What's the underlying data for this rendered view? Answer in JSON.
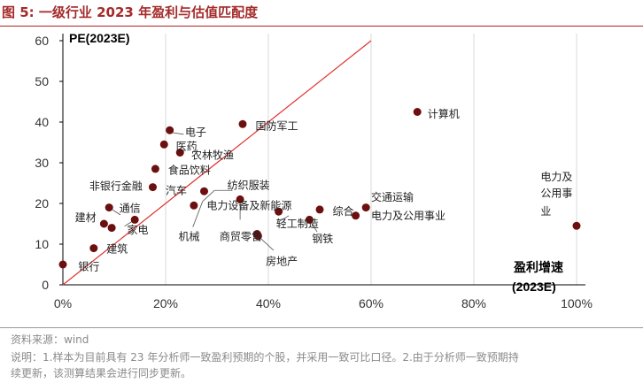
{
  "figure": {
    "title": "图 5:  一级行业 2023 年盈利与估值匹配度",
    "source": "资料来源：wind",
    "note_line1": "说明：1.样本为目前具有 23 年分析师一致盈利预期的个股，并采用一致可比口径。2.由于分析师一致预期持",
    "note_line2": "续更新，该测算结果会进行同步更新。"
  },
  "chart_data": {
    "type": "scatter",
    "y_axis_title": "PE(2023E)",
    "x_axis_title_line1": "盈利增速",
    "x_axis_title_line2": "(2023E)",
    "xlim": [
      0,
      1
    ],
    "ylim": [
      0,
      60
    ],
    "x_ticks": [
      0,
      0.2,
      0.4,
      0.6,
      0.8,
      1.0
    ],
    "x_tick_labels": [
      "0%",
      "20%",
      "40%",
      "60%",
      "80%",
      "100%"
    ],
    "y_ticks": [
      0,
      10,
      20,
      30,
      40,
      50,
      60
    ],
    "y_tick_labels": [
      "0",
      "10",
      "20",
      "30",
      "40",
      "50",
      "60"
    ],
    "grid": "vertical",
    "diagonal_line": {
      "x": [
        0,
        0.6
      ],
      "y": [
        0,
        60
      ]
    },
    "point_color": "#6b0f0f",
    "line_color": "#e03030",
    "points": [
      {
        "name": "银行",
        "x": 0.0,
        "y": 5.0
      },
      {
        "name": "建筑",
        "x": 0.06,
        "y": 9.0
      },
      {
        "name": "建材",
        "x": 0.08,
        "y": 15.0
      },
      {
        "name": "通信",
        "x": 0.09,
        "y": 19.0
      },
      {
        "name": "家电",
        "x": 0.095,
        "y": 14.0
      },
      {
        "name": "非银行金融",
        "x": 0.14,
        "y": 16.0
      },
      {
        "name": "汽车",
        "x": 0.175,
        "y": 24.0
      },
      {
        "name": "食品饮料",
        "x": 0.18,
        "y": 28.5
      },
      {
        "name": "医药",
        "x": 0.197,
        "y": 34.5
      },
      {
        "name": "电子",
        "x": 0.208,
        "y": 38.0
      },
      {
        "name": "农林牧渔",
        "x": 0.228,
        "y": 32.5
      },
      {
        "name": "机械",
        "x": 0.255,
        "y": 19.5
      },
      {
        "name": "纺织服装",
        "x": 0.275,
        "y": 23.0
      },
      {
        "name": "国防军工",
        "x": 0.35,
        "y": 39.5
      },
      {
        "name": "电力设备及新能源",
        "x": 0.345,
        "y": 21.0
      },
      {
        "name": "商贸零售",
        "x": 0.378,
        "y": 12.5
      },
      {
        "name": "房地产",
        "x": 0.38,
        "y": 12.0
      },
      {
        "name": "轻工制造",
        "x": 0.42,
        "y": 18.0
      },
      {
        "name": "钢铁",
        "x": 0.48,
        "y": 16.0
      },
      {
        "name": "综合",
        "x": 0.5,
        "y": 18.5
      },
      {
        "name": "电力及公用事业",
        "x": 0.57,
        "y": 17.0
      },
      {
        "name": "交通运输",
        "x": 0.59,
        "y": 19.0
      },
      {
        "name": "计算机",
        "x": 0.69,
        "y": 42.5
      },
      {
        "name": "电力及公用事业",
        "x": 1.0,
        "y": 14.5
      }
    ],
    "labels": [
      {
        "text": "银行",
        "x": 0.03,
        "y": 4.5,
        "anchor": "start"
      },
      {
        "text": "建筑",
        "x": 0.085,
        "y": 8.8,
        "anchor": "start"
      },
      {
        "text": "建材",
        "x": 0.065,
        "y": 16.5,
        "anchor": "end"
      },
      {
        "text": "家电",
        "x": 0.125,
        "y": 13.5,
        "anchor": "start"
      },
      {
        "text": "通信",
        "x": 0.11,
        "y": 18.8,
        "anchor": "start"
      },
      {
        "text": "非银行金融",
        "x": 0.155,
        "y": 24.2,
        "anchor": "end"
      },
      {
        "text": "汽车",
        "x": 0.2,
        "y": 23.2,
        "anchor": "start"
      },
      {
        "text": "食品饮料",
        "x": 0.205,
        "y": 28.2,
        "anchor": "start"
      },
      {
        "text": "医药",
        "x": 0.22,
        "y": 34.0,
        "anchor": "start"
      },
      {
        "text": "农林牧渔",
        "x": 0.25,
        "y": 31.8,
        "anchor": "start"
      },
      {
        "text": "电子",
        "x": 0.238,
        "y": 37.5,
        "anchor": "start"
      },
      {
        "text": "国防军工",
        "x": 0.375,
        "y": 39.0,
        "anchor": "start"
      },
      {
        "text": "纺织服装",
        "x": 0.32,
        "y": 24.5,
        "anchor": "start"
      },
      {
        "text": "电力设备及新能源",
        "x": 0.28,
        "y": 19.5,
        "anchor": "start"
      },
      {
        "text": "机械",
        "x": 0.225,
        "y": 11.8,
        "anchor": "start"
      },
      {
        "text": "商贸零售",
        "x": 0.305,
        "y": 11.8,
        "anchor": "start"
      },
      {
        "text": "轻工制造",
        "x": 0.415,
        "y": 15.0,
        "anchor": "start"
      },
      {
        "text": "钢铁",
        "x": 0.485,
        "y": 11.3,
        "anchor": "start"
      },
      {
        "text": "房地产",
        "x": 0.395,
        "y": 5.8,
        "anchor": "start"
      },
      {
        "text": "综合",
        "x": 0.525,
        "y": 18.0,
        "anchor": "start"
      },
      {
        "text": "交通运输",
        "x": 0.6,
        "y": 21.5,
        "anchor": "start"
      },
      {
        "text": "电力及公用事业",
        "x": 0.6,
        "y": 17.0,
        "anchor": "start"
      },
      {
        "text": "计算机",
        "x": 0.71,
        "y": 42.0,
        "anchor": "start"
      },
      {
        "text": "电力及",
        "x": 0.93,
        "y": 26.5,
        "anchor": "start"
      },
      {
        "text": "公用事",
        "x": 0.93,
        "y": 22.5,
        "anchor": "start"
      },
      {
        "text": "业",
        "x": 0.93,
        "y": 18.0,
        "anchor": "start"
      }
    ],
    "leader_lines": [
      {
        "x1": 0.097,
        "y1": 18.4,
        "x2": 0.112,
        "y2": 17.2
      },
      {
        "x1": 0.12,
        "y1": 14.4,
        "x2": 0.135,
        "y2": 15.6
      },
      {
        "x1": 0.208,
        "y1": 37.5,
        "x2": 0.235,
        "y2": 37.0
      },
      {
        "x1": 0.272,
        "y1": 20.5,
        "x2": 0.295,
        "y2": 23.2
      },
      {
        "x1": 0.295,
        "y1": 23.2,
        "x2": 0.33,
        "y2": 23.2
      },
      {
        "x1": 0.272,
        "y1": 20.5,
        "x2": 0.253,
        "y2": 14.2
      },
      {
        "x1": 0.345,
        "y1": 16.0,
        "x2": 0.345,
        "y2": 20.5
      },
      {
        "x1": 0.38,
        "y1": 12.0,
        "x2": 0.41,
        "y2": 8.5
      },
      {
        "x1": 0.42,
        "y1": 15.5,
        "x2": 0.44,
        "y2": 17.0
      },
      {
        "x1": 0.48,
        "y1": 16.0,
        "x2": 0.495,
        "y2": 13.0
      }
    ]
  }
}
